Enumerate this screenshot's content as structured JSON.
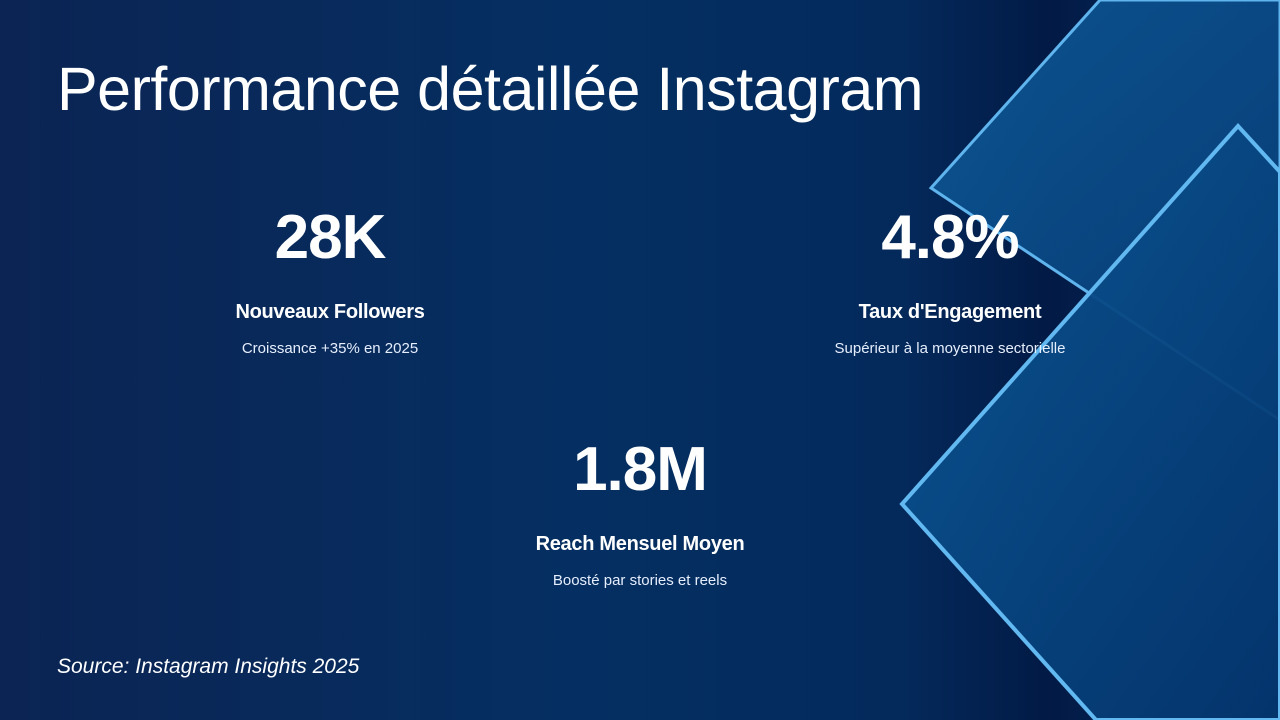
{
  "slide": {
    "title": "Performance détaillée Instagram",
    "metrics": [
      {
        "value": "28K",
        "label": "Nouveaux Followers",
        "description": "Croissance +35% en 2025"
      },
      {
        "value": "4.8%",
        "label": "Taux d'Engagement",
        "description": "Supérieur à la moyenne sectorielle"
      },
      {
        "value": "1.8M",
        "label": "Reach Mensuel Moyen",
        "description": "Boosté par stories et reels"
      }
    ],
    "source": "Source: Instagram Insights 2025"
  },
  "colors": {
    "background": "#0b2453",
    "accent_line": "#5fb4ee",
    "panel": "#0b4f8c",
    "text": "#ffffff"
  }
}
